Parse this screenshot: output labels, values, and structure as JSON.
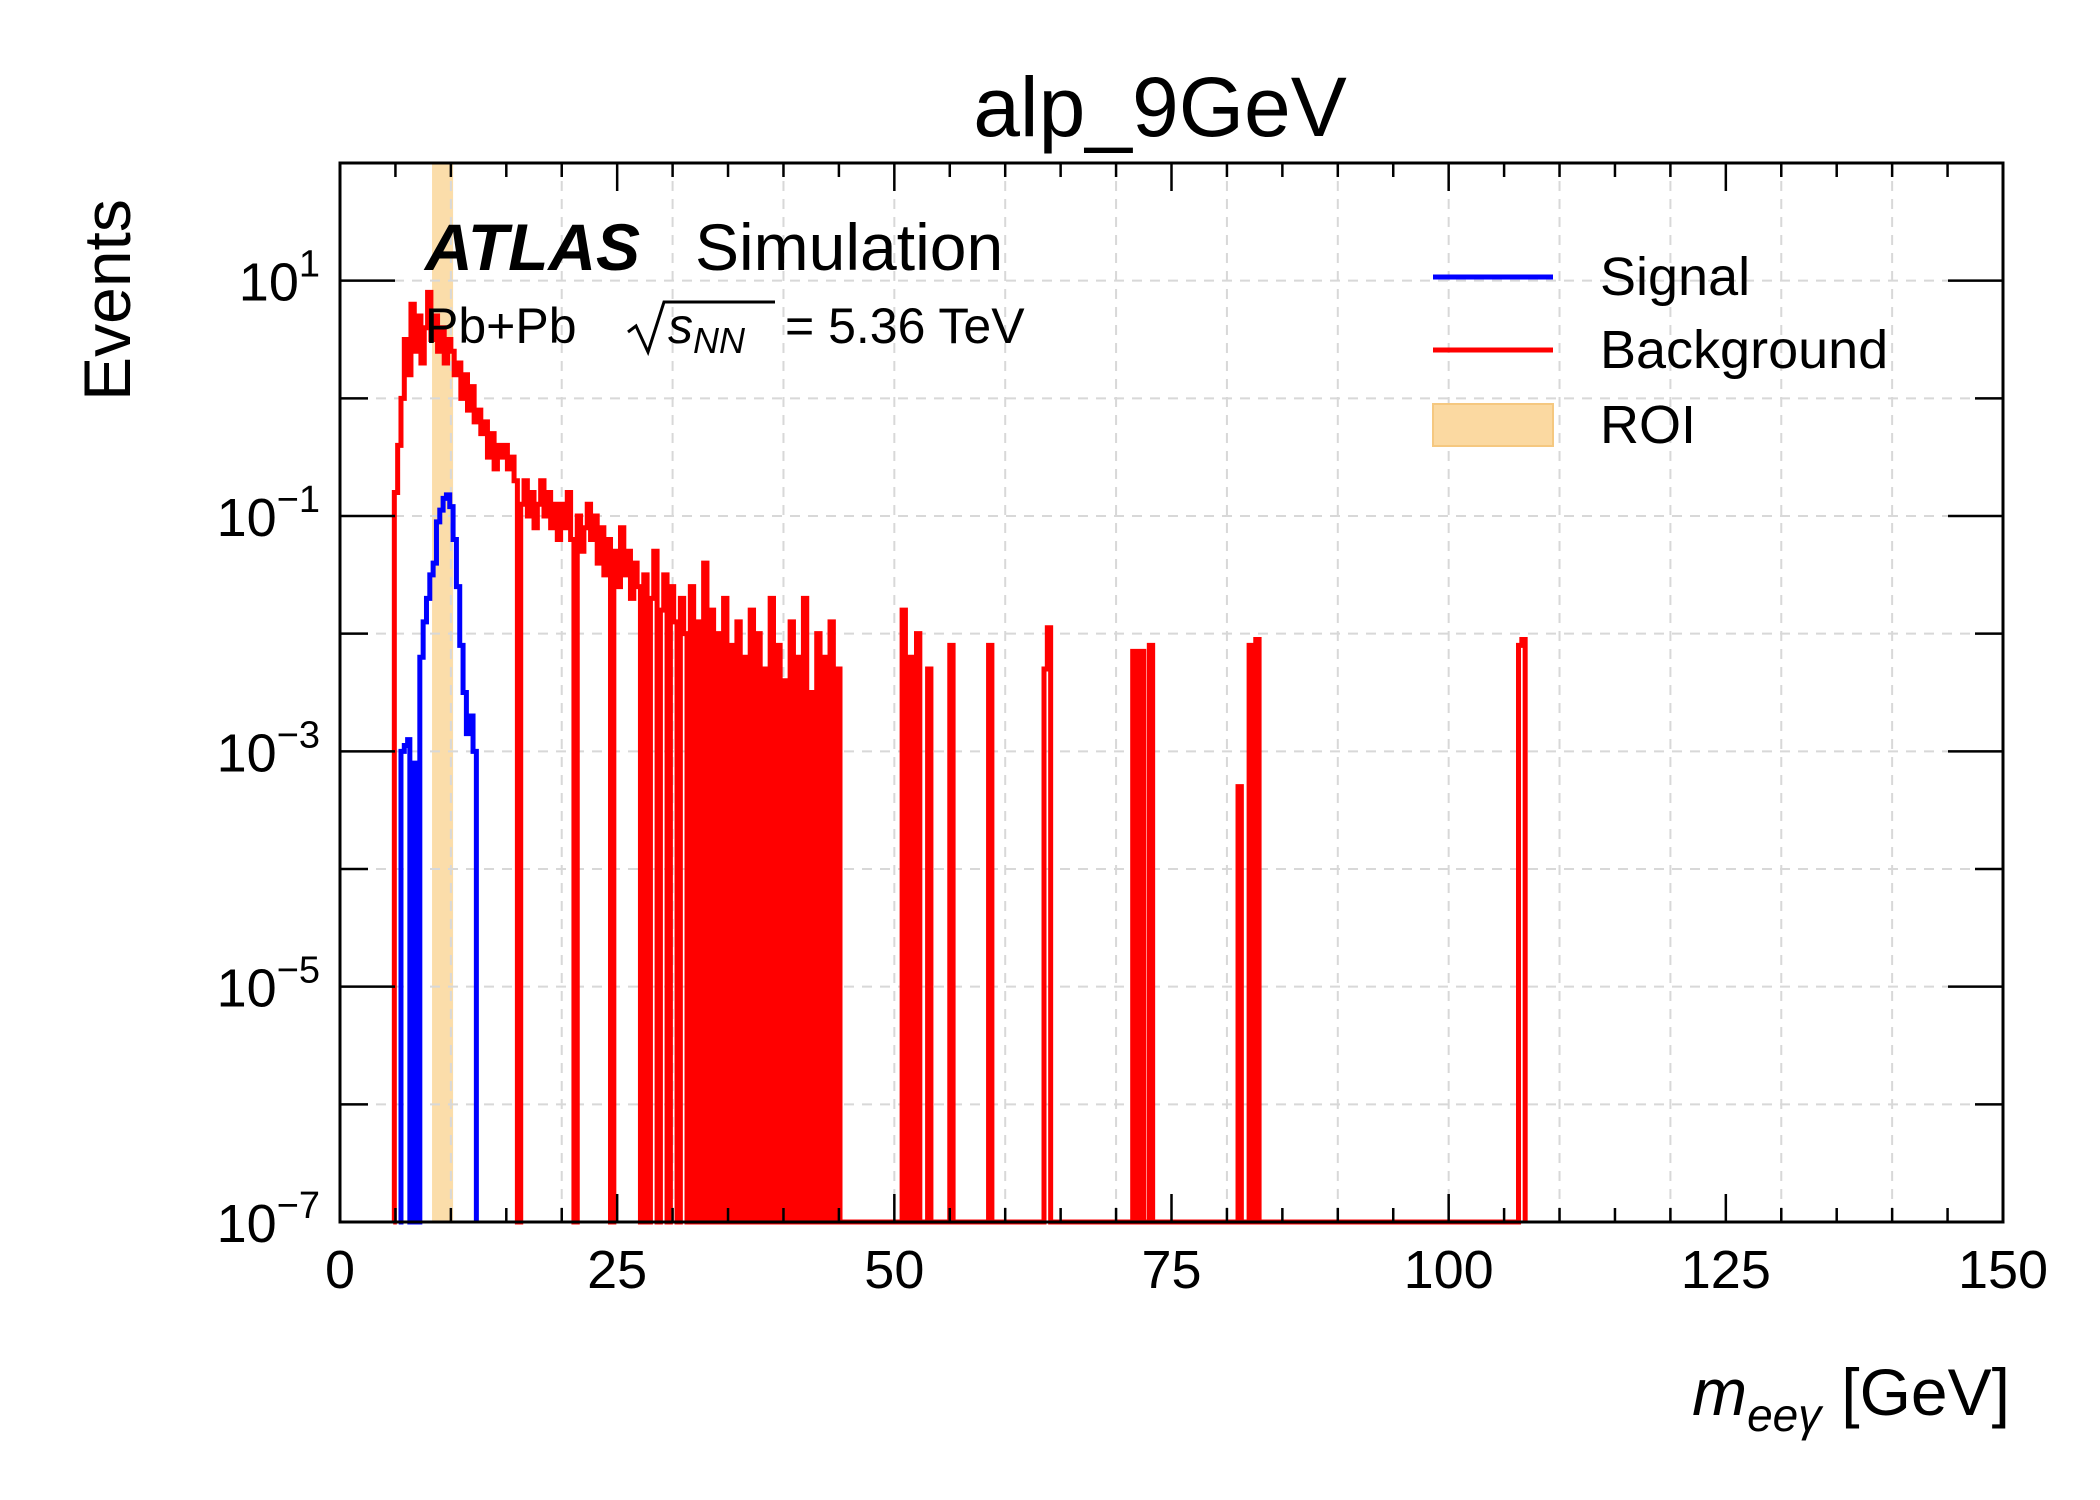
{
  "chart_data": {
    "type": "histogram-step",
    "title": "alp_9GeV",
    "xlabel_main": "m",
    "xlabel_sub": "eeγ",
    "xlabel_unit": "[GeV]",
    "ylabel": "Events",
    "xlim": [
      0,
      150
    ],
    "ylim_log10": [
      -7,
      2
    ],
    "y_scale": "log",
    "grid": true,
    "legend_position": "top-right",
    "x_ticks": [
      0,
      25,
      50,
      75,
      100,
      125,
      150
    ],
    "x_tick_labels": [
      "0",
      "25",
      "50",
      "75",
      "100",
      "125",
      "150"
    ],
    "y_ticks": [
      {
        "exp": 1,
        "base": "10",
        "sup": "1"
      },
      {
        "exp": -1,
        "base": "10",
        "sup": "−1"
      },
      {
        "exp": -3,
        "base": "10",
        "sup": "−3"
      },
      {
        "exp": -5,
        "base": "10",
        "sup": "−5"
      },
      {
        "exp": -7,
        "base": "10",
        "sup": "−7"
      }
    ],
    "annotations": {
      "experiment": "ATLAS",
      "label": "Simulation",
      "collision_prefix": "Pb+Pb",
      "sqrt_var": "s",
      "sqrt_sub": "NN",
      "energy": "= 5.36 TeV"
    },
    "roi": {
      "name": "ROI",
      "x_range": [
        8.3,
        10.2
      ],
      "color": "#fbd9a1"
    },
    "series": [
      {
        "name": "Signal",
        "color": "#0000ff",
        "points": [
          [
            5.3,
            -7
          ],
          [
            5.5,
            -3.0
          ],
          [
            5.8,
            -2.95
          ],
          [
            6.1,
            -2.9
          ],
          [
            6.3,
            -7
          ],
          [
            6.5,
            -7
          ],
          [
            6.6,
            -3.1
          ],
          [
            6.9,
            -7
          ],
          [
            7.2,
            -2.2
          ],
          [
            7.5,
            -1.9
          ],
          [
            7.8,
            -1.7
          ],
          [
            8.1,
            -1.5
          ],
          [
            8.4,
            -1.4
          ],
          [
            8.7,
            -1.05
          ],
          [
            9.0,
            -0.95
          ],
          [
            9.3,
            -0.85
          ],
          [
            9.6,
            -0.82
          ],
          [
            9.9,
            -0.92
          ],
          [
            10.2,
            -1.2
          ],
          [
            10.5,
            -1.6
          ],
          [
            10.8,
            -2.1
          ],
          [
            11.1,
            -2.5
          ],
          [
            11.4,
            -2.85
          ],
          [
            11.7,
            -2.7
          ],
          [
            12.0,
            -3.0
          ],
          [
            12.3,
            -7
          ]
        ]
      },
      {
        "name": "Background",
        "color": "#ff0000",
        "points": [
          [
            4.8,
            -7
          ],
          [
            4.9,
            -0.8
          ],
          [
            5.2,
            -0.4
          ],
          [
            5.5,
            0.0
          ],
          [
            5.8,
            0.5
          ],
          [
            6.1,
            0.2
          ],
          [
            6.4,
            0.8
          ],
          [
            6.7,
            0.4
          ],
          [
            7.0,
            0.7
          ],
          [
            7.3,
            0.3
          ],
          [
            7.6,
            0.6
          ],
          [
            7.9,
            0.9
          ],
          [
            8.2,
            0.5
          ],
          [
            8.5,
            0.7
          ],
          [
            8.8,
            0.4
          ],
          [
            9.1,
            0.6
          ],
          [
            9.4,
            0.3
          ],
          [
            9.7,
            0.5
          ],
          [
            10.0,
            0.4
          ],
          [
            10.3,
            0.2
          ],
          [
            10.6,
            0.3
          ],
          [
            10.9,
            0.0
          ],
          [
            11.2,
            0.2
          ],
          [
            11.5,
            -0.1
          ],
          [
            11.8,
            0.1
          ],
          [
            12.1,
            -0.2
          ],
          [
            12.4,
            -0.1
          ],
          [
            12.7,
            -0.3
          ],
          [
            13.0,
            -0.2
          ],
          [
            13.3,
            -0.5
          ],
          [
            13.6,
            -0.3
          ],
          [
            13.9,
            -0.6
          ],
          [
            14.2,
            -0.4
          ],
          [
            14.5,
            -0.5
          ],
          [
            14.8,
            -0.4
          ],
          [
            15.1,
            -0.6
          ],
          [
            15.4,
            -0.5
          ],
          [
            15.7,
            -0.7
          ],
          [
            16.0,
            -7
          ],
          [
            16.3,
            -0.9
          ],
          [
            16.6,
            -0.7
          ],
          [
            16.9,
            -1.0
          ],
          [
            17.2,
            -0.8
          ],
          [
            17.5,
            -1.1
          ],
          [
            17.8,
            -0.9
          ],
          [
            18.1,
            -0.7
          ],
          [
            18.4,
            -1.0
          ],
          [
            18.7,
            -0.8
          ],
          [
            19.0,
            -1.1
          ],
          [
            19.3,
            -0.9
          ],
          [
            19.6,
            -1.2
          ],
          [
            19.9,
            -0.9
          ],
          [
            20.2,
            -1.1
          ],
          [
            20.5,
            -0.8
          ],
          [
            20.8,
            -1.2
          ],
          [
            21.1,
            -7
          ],
          [
            21.4,
            -1.0
          ],
          [
            21.7,
            -1.3
          ],
          [
            22.0,
            -1.1
          ],
          [
            22.3,
            -0.9
          ],
          [
            22.6,
            -1.2
          ],
          [
            22.9,
            -1.0
          ],
          [
            23.2,
            -1.4
          ],
          [
            23.5,
            -1.1
          ],
          [
            23.8,
            -1.5
          ],
          [
            24.1,
            -1.2
          ],
          [
            24.4,
            -7
          ],
          [
            24.7,
            -1.3
          ],
          [
            25.0,
            -1.6
          ],
          [
            25.3,
            -1.1
          ],
          [
            25.6,
            -1.5
          ],
          [
            25.9,
            -1.3
          ],
          [
            26.2,
            -1.7
          ],
          [
            26.5,
            -1.4
          ],
          [
            26.8,
            -1.6
          ],
          [
            27.1,
            -7
          ],
          [
            27.4,
            -1.5
          ],
          [
            27.7,
            -7
          ],
          [
            28.0,
            -1.7
          ],
          [
            28.3,
            -1.3
          ],
          [
            28.6,
            -7
          ],
          [
            28.9,
            -1.8
          ],
          [
            29.2,
            -1.5
          ],
          [
            29.5,
            -7
          ],
          [
            29.8,
            -1.6
          ],
          [
            30.1,
            -1.9
          ],
          [
            30.4,
            -7
          ],
          [
            30.7,
            -1.7
          ],
          [
            31.0,
            -2.0
          ],
          [
            31.3,
            -7
          ],
          [
            31.6,
            -1.6
          ],
          [
            31.9,
            -7
          ],
          [
            32.2,
            -1.9
          ],
          [
            32.5,
            -7
          ],
          [
            32.8,
            -1.4
          ],
          [
            33.1,
            -7
          ],
          [
            33.4,
            -1.8
          ],
          [
            33.7,
            -7
          ],
          [
            34.0,
            -2.0
          ],
          [
            34.3,
            -7
          ],
          [
            34.6,
            -1.7
          ],
          [
            34.9,
            -7
          ],
          [
            35.2,
            -2.1
          ],
          [
            35.5,
            -7
          ],
          [
            35.8,
            -1.9
          ],
          [
            36.1,
            -7
          ],
          [
            36.4,
            -2.2
          ],
          [
            36.7,
            -7
          ],
          [
            37.0,
            -1.8
          ],
          [
            37.3,
            -7
          ],
          [
            37.6,
            -2.0
          ],
          [
            37.9,
            -7
          ],
          [
            38.2,
            -2.3
          ],
          [
            38.5,
            -7
          ],
          [
            38.8,
            -1.7
          ],
          [
            39.1,
            -7
          ],
          [
            39.4,
            -2.1
          ],
          [
            39.7,
            -7
          ],
          [
            40.0,
            -2.4
          ],
          [
            40.3,
            -7
          ],
          [
            40.6,
            -1.9
          ],
          [
            40.9,
            -7
          ],
          [
            41.2,
            -2.2
          ],
          [
            41.5,
            -7
          ],
          [
            41.8,
            -1.7
          ],
          [
            42.1,
            -7
          ],
          [
            42.4,
            -2.5
          ],
          [
            42.7,
            -7
          ],
          [
            43.0,
            -2.0
          ],
          [
            43.3,
            -7
          ],
          [
            43.6,
            -2.2
          ],
          [
            43.9,
            -7
          ],
          [
            44.2,
            -1.9
          ],
          [
            44.5,
            -7
          ],
          [
            44.8,
            -2.3
          ],
          [
            45.1,
            -7
          ],
          [
            50.5,
            -7
          ],
          [
            50.7,
            -1.8
          ],
          [
            51.0,
            -7
          ],
          [
            51.3,
            -2.2
          ],
          [
            51.6,
            -7
          ],
          [
            52.0,
            -2.0
          ],
          [
            52.3,
            -7
          ],
          [
            53.0,
            -2.3
          ],
          [
            53.3,
            -7
          ],
          [
            55.0,
            -2.1
          ],
          [
            55.3,
            -7
          ],
          [
            58.5,
            -2.1
          ],
          [
            58.8,
            -7
          ],
          [
            63.5,
            -2.3
          ],
          [
            63.8,
            -1.95
          ],
          [
            64.1,
            -7
          ],
          [
            71.5,
            -2.15
          ],
          [
            71.8,
            -7
          ],
          [
            72.2,
            -2.15
          ],
          [
            72.5,
            -7
          ],
          [
            73.0,
            -2.1
          ],
          [
            73.3,
            -7
          ],
          [
            81.0,
            -3.3
          ],
          [
            81.3,
            -7
          ],
          [
            82.0,
            -2.1
          ],
          [
            82.3,
            -7
          ],
          [
            82.6,
            -2.05
          ],
          [
            82.9,
            -7
          ],
          [
            106.3,
            -2.1
          ],
          [
            106.6,
            -2.05
          ],
          [
            106.9,
            -7
          ]
        ]
      }
    ]
  }
}
